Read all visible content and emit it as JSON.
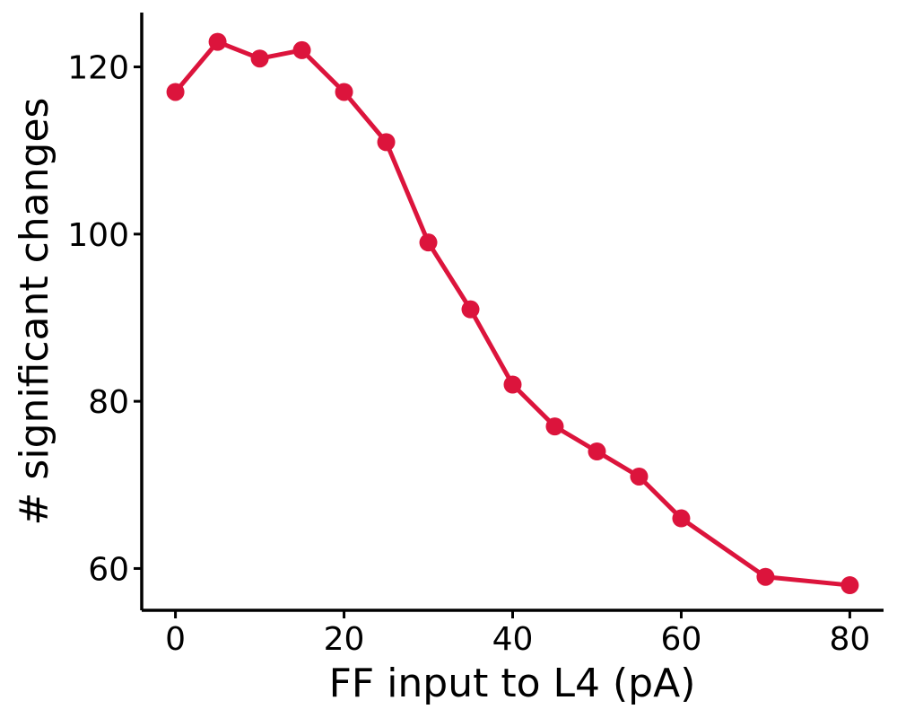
{
  "chart_data": {
    "type": "line",
    "title": "",
    "xlabel": "FF input to L4 (pA)",
    "ylabel": "# significant changes",
    "xlim": [
      -4,
      84
    ],
    "ylim": [
      55,
      126.5
    ],
    "xticks": [
      0,
      20,
      40,
      60,
      80
    ],
    "yticks": [
      60,
      80,
      100,
      120
    ],
    "grid": false,
    "legend": "none",
    "series": [
      {
        "color": "#dc143c",
        "marker": "circle",
        "x": [
          0,
          5,
          10,
          15,
          20,
          25,
          30,
          35,
          40,
          45,
          50,
          55,
          60,
          70,
          80
        ],
        "y": [
          117,
          123,
          121,
          122,
          117,
          111,
          99,
          91,
          82,
          77,
          74,
          71,
          66,
          59,
          58
        ]
      }
    ]
  }
}
